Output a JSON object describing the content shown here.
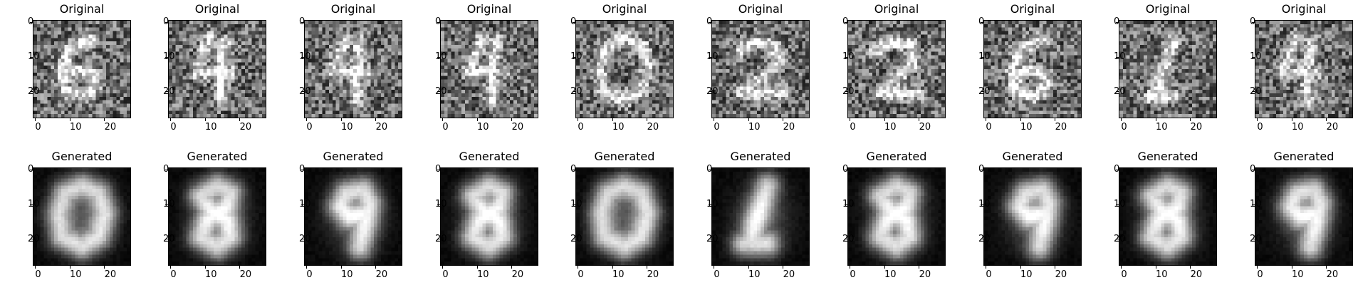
{
  "figure": {
    "rows": [
      {
        "row": "original",
        "title": "Original",
        "count": 10
      },
      {
        "row": "generated",
        "title": "Generated",
        "count": 10
      }
    ],
    "image_size": 28,
    "axis_ticks": [
      "0",
      "10",
      "20"
    ],
    "axis_tick_values": [
      0,
      10,
      20
    ],
    "colormap": "gray",
    "original_depicts": [
      "6",
      "4",
      "4",
      "4",
      "0",
      "2",
      "2",
      "6",
      "1",
      "4"
    ],
    "generated_depicts": [
      "0",
      "8",
      "9",
      "8",
      "0",
      "1",
      "8",
      "9",
      "8",
      "9"
    ]
  }
}
